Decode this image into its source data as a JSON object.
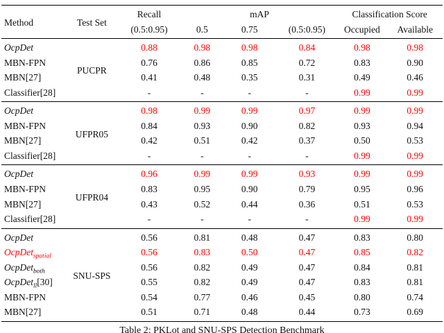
{
  "accent_color": "#ff0000",
  "table": {
    "header": {
      "method": "Method",
      "test_set": "Test Set",
      "recall": "Recall",
      "recall_sub": "(0.5:0.95)",
      "map": "mAP",
      "map_sub": [
        "0.5",
        "0.75",
        "(0.5:0.95)"
      ],
      "classification": "Classification Score",
      "class_sub": [
        "Occupied",
        "Available"
      ]
    },
    "groups": [
      {
        "test_set": "PUCPR",
        "rows": [
          {
            "name": "OcpDet",
            "italic": true,
            "sub": "",
            "ref": "",
            "name_red": false,
            "values": [
              "0.88",
              "0.98",
              "0.98",
              "0.84",
              "0.98",
              "0.98"
            ],
            "red": [
              1,
              1,
              1,
              1,
              1,
              1
            ]
          },
          {
            "name": "MBN-FPN",
            "italic": false,
            "sub": "",
            "ref": "",
            "name_red": false,
            "values": [
              "0.76",
              "0.86",
              "0.85",
              "0.72",
              "0.83",
              "0.90"
            ],
            "red": [
              0,
              0,
              0,
              0,
              0,
              0
            ]
          },
          {
            "name": "MBN[27]",
            "italic": false,
            "sub": "",
            "ref": "",
            "name_red": false,
            "values": [
              "0.41",
              "0.48",
              "0.35",
              "0.31",
              "0.49",
              "0.46"
            ],
            "red": [
              0,
              0,
              0,
              0,
              0,
              0
            ]
          },
          {
            "name": "Classifier[28]",
            "italic": false,
            "sub": "",
            "ref": "",
            "name_red": false,
            "values": [
              "-",
              "-",
              "-",
              "-",
              "0.99",
              "0.99"
            ],
            "red": [
              0,
              0,
              0,
              0,
              1,
              1
            ]
          }
        ]
      },
      {
        "test_set": "UFPR05",
        "rows": [
          {
            "name": "OcpDet",
            "italic": true,
            "sub": "",
            "ref": "",
            "name_red": false,
            "values": [
              "0.98",
              "0.99",
              "0.99",
              "0.97",
              "0.99",
              "0.99"
            ],
            "red": [
              1,
              1,
              1,
              1,
              1,
              1
            ]
          },
          {
            "name": "MBN-FPN",
            "italic": false,
            "sub": "",
            "ref": "",
            "name_red": false,
            "values": [
              "0.84",
              "0.93",
              "0.90",
              "0.82",
              "0.93",
              "0.94"
            ],
            "red": [
              0,
              0,
              0,
              0,
              0,
              0
            ]
          },
          {
            "name": "MBN[27]",
            "italic": false,
            "sub": "",
            "ref": "",
            "name_red": false,
            "values": [
              "0.42",
              "0.51",
              "0.42",
              "0.37",
              "0.50",
              "0.53"
            ],
            "red": [
              0,
              0,
              0,
              0,
              0,
              0
            ]
          },
          {
            "name": "Classifier[28]",
            "italic": false,
            "sub": "",
            "ref": "",
            "name_red": false,
            "values": [
              "-",
              "-",
              "-",
              "-",
              "0.99",
              "0.99"
            ],
            "red": [
              0,
              0,
              0,
              0,
              1,
              1
            ]
          }
        ]
      },
      {
        "test_set": "UFPR04",
        "rows": [
          {
            "name": "OcpDet",
            "italic": true,
            "sub": "",
            "ref": "",
            "name_red": false,
            "values": [
              "0.96",
              "0.99",
              "0.99",
              "0.93",
              "0.99",
              "0.99"
            ],
            "red": [
              1,
              1,
              1,
              1,
              1,
              1
            ]
          },
          {
            "name": "MBN-FPN",
            "italic": false,
            "sub": "",
            "ref": "",
            "name_red": false,
            "values": [
              "0.83",
              "0.95",
              "0.90",
              "0.79",
              "0.95",
              "0.96"
            ],
            "red": [
              0,
              0,
              0,
              0,
              0,
              0
            ]
          },
          {
            "name": "MBN[27]",
            "italic": false,
            "sub": "",
            "ref": "",
            "name_red": false,
            "values": [
              "0.43",
              "0.52",
              "0.44",
              "0.36",
              "0.51",
              "0.53"
            ],
            "red": [
              0,
              0,
              0,
              0,
              0,
              0
            ]
          },
          {
            "name": "Classifier[28]",
            "italic": false,
            "sub": "",
            "ref": "",
            "name_red": false,
            "values": [
              "-",
              "-",
              "-",
              "-",
              "0.99",
              "0.99"
            ],
            "red": [
              0,
              0,
              0,
              0,
              1,
              1
            ]
          }
        ]
      },
      {
        "test_set": "SNU-SPS",
        "rows": [
          {
            "name": "OcpDet",
            "italic": true,
            "sub": "",
            "ref": "",
            "name_red": false,
            "values": [
              "0.56",
              "0.81",
              "0.48",
              "0.47",
              "0.83",
              "0.80"
            ],
            "red": [
              0,
              0,
              0,
              0,
              0,
              0
            ]
          },
          {
            "name": "OcpDet",
            "italic": true,
            "sub": "spatial",
            "ref": "",
            "name_red": true,
            "values": [
              "0.56",
              "0.83",
              "0.50",
              "0.47",
              "0.85",
              "0.82"
            ],
            "red": [
              1,
              1,
              1,
              1,
              1,
              1
            ]
          },
          {
            "name": "OcpDet",
            "italic": true,
            "sub": "both",
            "ref": "",
            "name_red": false,
            "values": [
              "0.56",
              "0.82",
              "0.49",
              "0.47",
              "0.84",
              "0.81"
            ],
            "red": [
              0,
              0,
              0,
              0,
              0,
              0
            ]
          },
          {
            "name": "OcpDet",
            "italic": true,
            "sub": "ll",
            "ref": "[30]",
            "name_red": false,
            "values": [
              "0.55",
              "0.82",
              "0.49",
              "0.47",
              "0.83",
              "0.81"
            ],
            "red": [
              0,
              0,
              0,
              0,
              0,
              0
            ]
          },
          {
            "name": "MBN-FPN",
            "italic": false,
            "sub": "",
            "ref": "",
            "name_red": false,
            "values": [
              "0.54",
              "0.77",
              "0.46",
              "0.45",
              "0.80",
              "0.74"
            ],
            "red": [
              0,
              0,
              0,
              0,
              0,
              0
            ]
          },
          {
            "name": "MBN[27]",
            "italic": false,
            "sub": "",
            "ref": "",
            "name_red": false,
            "values": [
              "0.51",
              "0.71",
              "0.48",
              "0.44",
              "0.73",
              "0.69"
            ],
            "red": [
              0,
              0,
              0,
              0,
              0,
              0
            ]
          }
        ]
      }
    ],
    "caption": "Table 2: PKLot and SNU-SPS Detection Benchmark"
  }
}
